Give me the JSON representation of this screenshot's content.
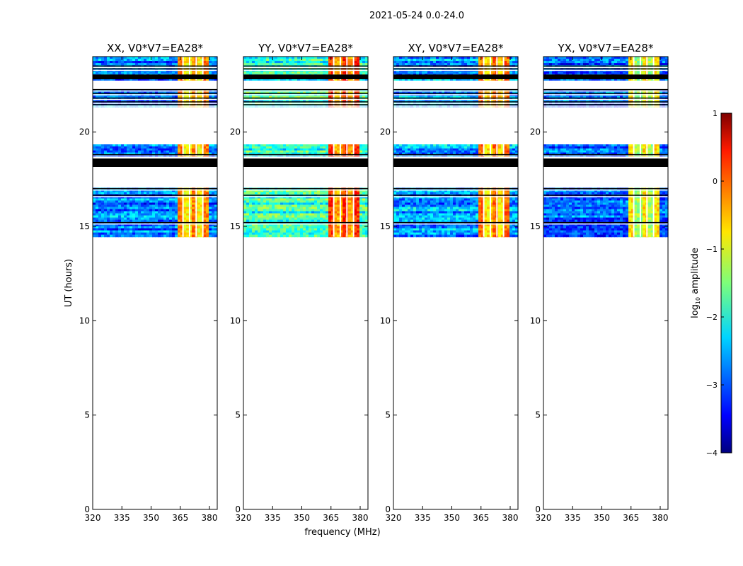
{
  "figure": {
    "suptitle": "2021-05-24 0.0-24.0",
    "ylabel": "UT (hours)",
    "xlabel": "frequency (MHz)"
  },
  "chart_data": {
    "type": "heatmap",
    "x_ticks": [
      320,
      335,
      350,
      365,
      380
    ],
    "x_tick_labels": [
      "320",
      "335",
      "350",
      "365",
      "380"
    ],
    "y_ticks": [
      0,
      5,
      10,
      15,
      20
    ],
    "y_tick_labels": [
      "0",
      "5",
      "10",
      "15",
      "20"
    ],
    "xlim": [
      320,
      384
    ],
    "ylim": [
      0,
      24
    ],
    "panels": [
      {
        "title": "XX, V0*V7=EA28*",
        "base_level": -2.8,
        "band_level": -0.6
      },
      {
        "title": "YY, V0*V7=EA28*",
        "base_level": -1.9,
        "band_level": -0.2
      },
      {
        "title": "XY, V0*V7=EA28*",
        "base_level": -2.6,
        "band_level": -0.5
      },
      {
        "title": "YX, V0*V7=EA28*",
        "base_level": -2.9,
        "band_level": -1.1
      }
    ],
    "data_blocks": [
      {
        "t_start": 14.45,
        "t_end": 17.05
      },
      {
        "t_start": 18.7,
        "t_end": 19.35
      },
      {
        "t_start": 21.35,
        "t_end": 22.25
      },
      {
        "t_start": 22.75,
        "t_end": 24.0
      }
    ],
    "flagged_blocks": [
      {
        "t_start": 18.15,
        "t_end": 18.6
      },
      {
        "t_start": 22.8,
        "t_end": 23.05
      }
    ],
    "flagged_lines": [
      15.2,
      16.65,
      17.0,
      18.8,
      21.45,
      21.6,
      21.8,
      22.05,
      22.25,
      23.35,
      23.5
    ],
    "band_freq_range": [
      363,
      380
    ],
    "colorbar": {
      "label": "log10 amplitude",
      "label_main": "log",
      "label_sub": "10",
      "label_tail": " amplitude",
      "min": -4,
      "max": 1,
      "ticks": [
        -4,
        -3,
        -2,
        -1,
        0,
        1
      ],
      "tick_labels": [
        "−4",
        "−3",
        "−2",
        "−1",
        "0",
        "1"
      ],
      "colormap": "jet"
    }
  }
}
